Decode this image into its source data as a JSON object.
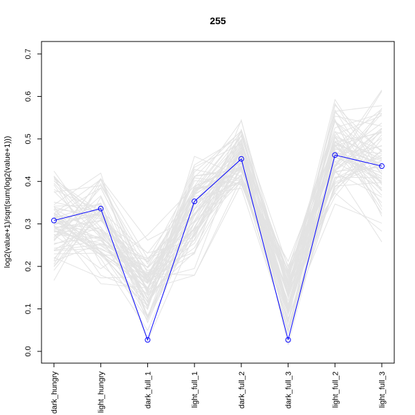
{
  "chart_data": {
    "type": "line",
    "title": "255",
    "xlabel": "",
    "ylabel": "log2(value+1)/sqrt(sum(log2(value+1)))",
    "categories": [
      "dark_hungry",
      "light_hungry",
      "dark_full_1",
      "light_full_1",
      "dark_full_2",
      "dark_full_3",
      "light_full_2",
      "light_full_3"
    ],
    "ylim": [
      0,
      0.7
    ],
    "yticks": [
      "0.0",
      "0.1",
      "0.2",
      "0.3",
      "0.4",
      "0.5",
      "0.6",
      "0.7"
    ],
    "grid": false,
    "legend": "none",
    "series": [
      {
        "values": [
          0.308,
          0.336,
          0.027,
          0.353,
          0.453,
          0.027,
          0.462,
          0.436
        ],
        "color": "#0000ff",
        "markers": "open-circle"
      }
    ],
    "background_lines": {
      "color": "#e3e3e3",
      "count": 70,
      "ranges": [
        [
          0.1,
          0.5
        ],
        [
          0.11,
          0.48
        ],
        [
          0.0,
          0.32
        ],
        [
          0.13,
          0.52
        ],
        [
          0.3,
          0.6
        ],
        [
          0.0,
          0.27
        ],
        [
          0.27,
          0.66
        ],
        [
          0.23,
          0.68
        ]
      ]
    }
  }
}
